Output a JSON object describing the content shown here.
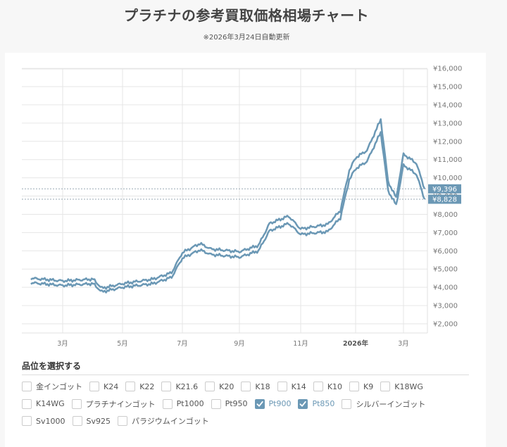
{
  "header": {
    "title": "プラチナの参考買取価格相場チャート",
    "subtitle": "※2026年3月24日自動更新"
  },
  "colors": {
    "line": "#6b98b5",
    "tag_bg": "#6b98b5",
    "grid": "#e6e6e6",
    "checked": "#6b98b5"
  },
  "chart_data": {
    "type": "line",
    "title": "プラチナの参考買取価格相場チャート",
    "xlabel": "",
    "ylabel": "",
    "y_axis_position": "right",
    "ylim": [
      1500,
      16000
    ],
    "grid": true,
    "yticks": [
      "¥2,000",
      "¥3,000",
      "¥4,000",
      "¥5,000",
      "¥6,000",
      "¥7,000",
      "¥8,000",
      "¥9,000",
      "¥10,000",
      "¥11,000",
      "¥12,000",
      "¥13,000",
      "¥14,000",
      "¥15,000",
      "¥16,000"
    ],
    "xticks": [
      {
        "label": "3月",
        "bold": false
      },
      {
        "label": "5月",
        "bold": false
      },
      {
        "label": "7月",
        "bold": false
      },
      {
        "label": "9月",
        "bold": false
      },
      {
        "label": "11月",
        "bold": false
      },
      {
        "label": "2026年",
        "bold": true
      },
      {
        "label": "3月",
        "bold": false
      }
    ],
    "x": [
      "2025-02-01",
      "2025-03-01",
      "2025-04-01",
      "2025-04-10",
      "2025-05-01",
      "2025-06-01",
      "2025-06-20",
      "2025-07-01",
      "2025-07-20",
      "2025-08-01",
      "2025-09-01",
      "2025-09-20",
      "2025-10-01",
      "2025-10-20",
      "2025-11-01",
      "2025-12-01",
      "2025-12-15",
      "2025-12-25",
      "2026-01-01",
      "2026-01-15",
      "2026-02-01",
      "2026-02-10",
      "2026-02-20",
      "2026-03-01",
      "2026-03-15",
      "2026-03-24"
    ],
    "series": [
      {
        "name": "Pt900",
        "values": [
          4500,
          4350,
          4450,
          3950,
          4200,
          4450,
          4800,
          5900,
          6400,
          6100,
          5950,
          6300,
          7500,
          7900,
          7200,
          7450,
          8200,
          10400,
          11100,
          11500,
          13200,
          9800,
          8900,
          11300,
          10800,
          9396
        ]
      },
      {
        "name": "Pt850",
        "values": [
          4250,
          4100,
          4200,
          3750,
          4000,
          4200,
          4550,
          5600,
          6050,
          5800,
          5650,
          6000,
          7100,
          7500,
          6900,
          7050,
          7800,
          9900,
          10500,
          10900,
          12500,
          9300,
          8500,
          10700,
          10200,
          8828
        ]
      }
    ],
    "annotations": [
      {
        "label": "¥9,396",
        "value": 9396,
        "series": "Pt900"
      },
      {
        "label": "¥8,828",
        "value": 8828,
        "series": "Pt850"
      }
    ]
  },
  "grade_selector": {
    "heading": "品位を選択する",
    "rows": [
      [
        {
          "label": "金インゴット",
          "checked": false
        },
        {
          "label": "K24",
          "checked": false
        },
        {
          "label": "K22",
          "checked": false
        },
        {
          "label": "K21.6",
          "checked": false
        },
        {
          "label": "K20",
          "checked": false
        },
        {
          "label": "K18",
          "checked": false
        },
        {
          "label": "K14",
          "checked": false
        },
        {
          "label": "K10",
          "checked": false
        },
        {
          "label": "K9",
          "checked": false
        },
        {
          "label": "K18WG",
          "checked": false
        }
      ],
      [
        {
          "label": "K14WG",
          "checked": false
        },
        {
          "label": "プラチナインゴット",
          "checked": false
        },
        {
          "label": "Pt1000",
          "checked": false
        },
        {
          "label": "Pt950",
          "checked": false
        },
        {
          "label": "Pt900",
          "checked": true
        },
        {
          "label": "Pt850",
          "checked": true
        },
        {
          "label": "シルバーインゴット",
          "checked": false
        }
      ],
      [
        {
          "label": "Sv1000",
          "checked": false
        },
        {
          "label": "Sv925",
          "checked": false
        },
        {
          "label": "パラジウムインゴット",
          "checked": false
        }
      ]
    ]
  }
}
